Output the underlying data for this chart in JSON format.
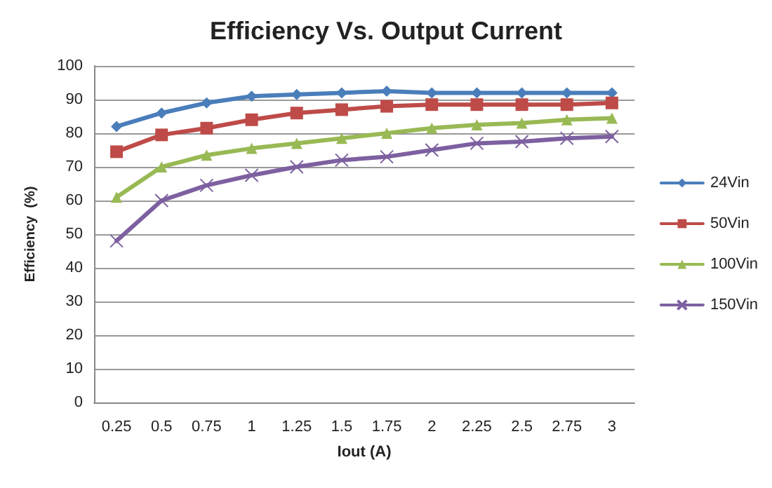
{
  "chart_data": {
    "type": "line",
    "title": "Efficiency Vs. Output Current",
    "xlabel": "Iout (A)",
    "ylabel": "Efficiency  (%)",
    "categories": [
      "0.25",
      "0.5",
      "0.75",
      "1",
      "1.25",
      "1.5",
      "1.75",
      "2",
      "2.25",
      "2.5",
      "2.75",
      "3"
    ],
    "series": [
      {
        "name": "24Vin",
        "color": "#4a7ebb",
        "marker": "diamond",
        "values": [
          82,
          86,
          89,
          91,
          91.5,
          92,
          92.5,
          92,
          92,
          92,
          92,
          92
        ]
      },
      {
        "name": "50Vin",
        "color": "#be4b48",
        "marker": "square",
        "values": [
          74.5,
          79.5,
          81.5,
          84,
          86,
          87,
          88,
          88.5,
          88.5,
          88.5,
          88.5,
          89
        ]
      },
      {
        "name": "100Vin",
        "color": "#98b954",
        "marker": "triangle",
        "values": [
          61,
          70,
          73.5,
          75.5,
          77,
          78.5,
          80,
          81.5,
          82.5,
          83,
          84,
          84.5
        ]
      },
      {
        "name": "150Vin",
        "color": "#7d60a0",
        "marker": "cross",
        "values": [
          48,
          60,
          64.5,
          67.5,
          70,
          72,
          73,
          75,
          77,
          77.5,
          78.5,
          79
        ]
      }
    ],
    "ylim": [
      0,
      100
    ],
    "yticks": [
      0,
      10,
      20,
      30,
      40,
      50,
      60,
      70,
      80,
      90,
      100
    ],
    "grid": "y",
    "legend": "right"
  }
}
